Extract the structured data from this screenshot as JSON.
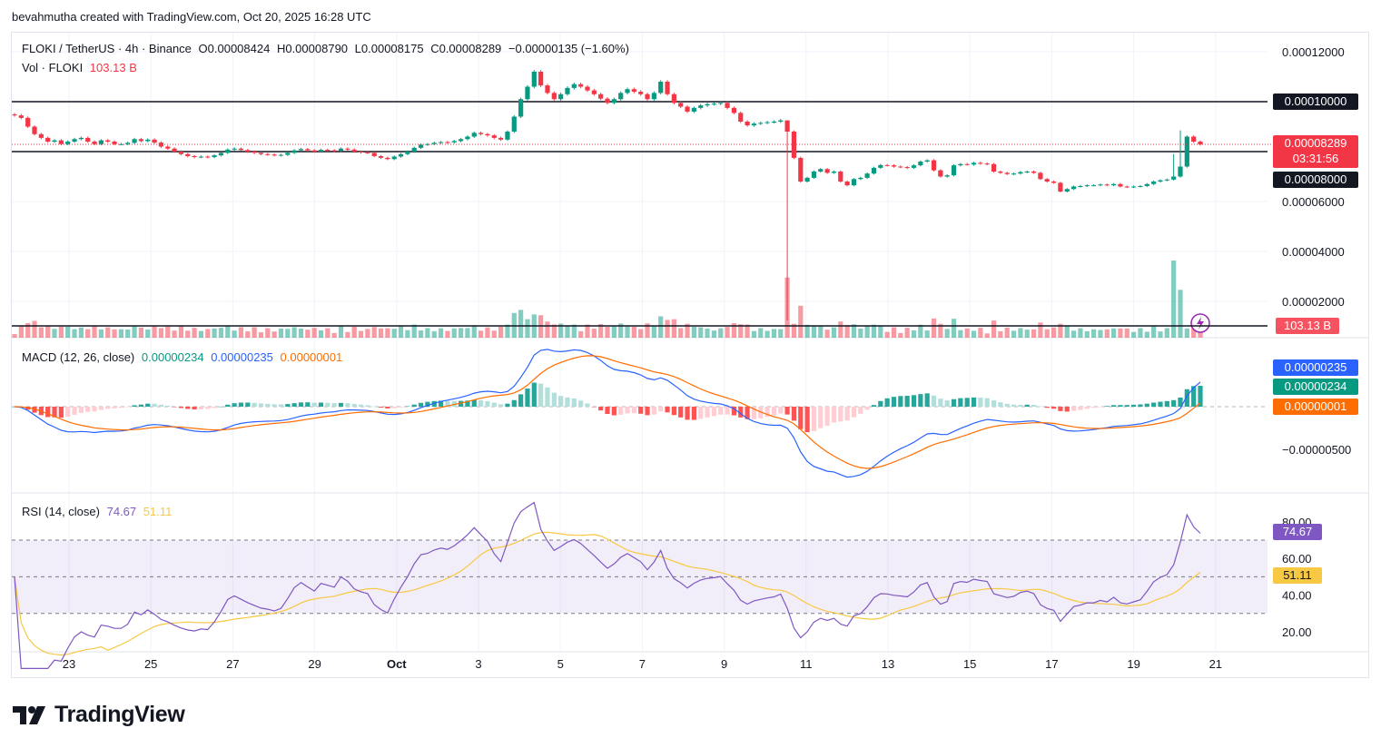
{
  "attribution": "bevahmutha created with TradingView.com, Oct 20, 2025 16:28 UTC",
  "brand": {
    "name": "TradingView"
  },
  "legend": {
    "symbol": "FLOKI / TetherUS · 4h · Binance",
    "open": "O0.00008424",
    "high": "H0.00008790",
    "low": "L0.00008175",
    "close": "C0.00008289",
    "change": "−0.00000135 (−1.60%)",
    "vol_label": "Vol · FLOKI",
    "vol_value": "103.13 B",
    "macd_label": "MACD (12, 26, close)",
    "macd_hist": "0.00000234",
    "macd_line": "0.00000235",
    "macd_signal": "0.00000001",
    "rsi_label": "RSI (14, close)",
    "rsi_value": "74.67",
    "rsi_ma": "51.11"
  },
  "tags": {
    "resistance": "0.00010000",
    "price": "0.00008289",
    "countdown": "03:31:56",
    "support": "0.00008000",
    "volume": "103.13 B",
    "macd_line": "0.00000235",
    "macd_hist": "0.00000234",
    "macd_signal": "0.00000001",
    "rsi": "74.67",
    "rsi_ma": "51.11"
  },
  "colors": {
    "up": "#089981",
    "down": "#f23645",
    "macd_line": "#2962ff",
    "signal": "#ff6d00",
    "rsi": "#7e57c2",
    "rsi_ma": "#f7c843",
    "hline": "#131722",
    "price_tag": "#f23645"
  },
  "chart_data": {
    "type": "candlestick",
    "price_axis": {
      "ticks": [
        0.00012,
        0.0001,
        8e-05,
        6e-05,
        4e-05,
        2e-05
      ],
      "tick_labels": [
        "0.00012000",
        "0.00008000",
        "0.00006000",
        "0.00004000",
        "0.00002000"
      ]
    },
    "x_axis": {
      "labels": [
        "23",
        "25",
        "27",
        "29",
        "Oct",
        "3",
        "5",
        "7",
        "9",
        "11",
        "13",
        "15",
        "17",
        "19",
        "21"
      ]
    },
    "horizontal_lines": [
      0.0001,
      8e-05
    ],
    "close": [
      9.45e-05,
      9.35e-05,
      9e-05,
      8.7e-05,
      8.55e-05,
      8.4e-05,
      8.45e-05,
      8.3e-05,
      8.4e-05,
      8.5e-05,
      8.55e-05,
      8.4e-05,
      8.3e-05,
      8.45e-05,
      8.4e-05,
      8.3e-05,
      8.3e-05,
      8.35e-05,
      8.5e-05,
      8.42e-05,
      8.48e-05,
      8.36e-05,
      8.2e-05,
      8.12e-05,
      8e-05,
      7.9e-05,
      7.82e-05,
      7.78e-05,
      7.8e-05,
      7.78e-05,
      7.85e-05,
      7.95e-05,
      8.08e-05,
      8.12e-05,
      8.06e-05,
      8e-05,
      7.95e-05,
      7.9e-05,
      7.88e-05,
      7.85e-05,
      7.87e-05,
      7.95e-05,
      8.05e-05,
      8.1e-05,
      8.05e-05,
      8e-05,
      8.07e-05,
      8.05e-05,
      8.03e-05,
      8.12e-05,
      8.08e-05,
      8e-05,
      7.97e-05,
      7.95e-05,
      7.82e-05,
      7.75e-05,
      7.7e-05,
      7.8e-05,
      7.9e-05,
      8e-05,
      8.15e-05,
      8.28e-05,
      8.3e-05,
      8.35e-05,
      8.38e-05,
      8.37e-05,
      8.42e-05,
      8.5e-05,
      8.6e-05,
      8.75e-05,
      8.7e-05,
      8.65e-05,
      8.55e-05,
      8.48e-05,
      8.8e-05,
      9.4e-05,
      0.000101,
      0.000106,
      0.000112,
      0.0001065,
      0.0001035,
      0.000101,
      0.000103,
      0.0001055,
      0.000107,
      0.000106,
      0.0001045,
      0.000103,
      0.0001012,
      9.95e-05,
      0.000101,
      0.0001035,
      0.000105,
      0.000104,
      0.000103,
      0.000101,
      0.0001035,
      0.000108,
      0.000103,
      9.95e-05,
      9.8e-05,
      9.6e-05,
      9.75e-05,
      9.85e-05,
      9.9e-05,
      9.92e-05,
      9.95e-05,
      9.75e-05,
      9.55e-05,
      9.2e-05,
      9.05e-05,
      9.12e-05,
      9.15e-05,
      9.18e-05,
      9.2e-05,
      9.25e-05,
      8.8e-05,
      7.75e-05,
      6.8e-05,
      6.95e-05,
      7.2e-05,
      7.3e-05,
      7.15e-05,
      7.2e-05,
      6.8e-05,
      6.65e-05,
      6.9e-05,
      6.95e-05,
      7.12e-05,
      7.35e-05,
      7.46e-05,
      7.45e-05,
      7.4e-05,
      7.38e-05,
      7.35e-05,
      7.45e-05,
      7.6e-05,
      7.65e-05,
      7.25e-05,
      7e-05,
      7.05e-05,
      7.45e-05,
      7.5e-05,
      7.48e-05,
      7.55e-05,
      7.52e-05,
      7.5e-05,
      7.2e-05,
      7.15e-05,
      7.1e-05,
      7.12e-05,
      7.18e-05,
      7.2e-05,
      7.15e-05,
      6.9e-05,
      6.8e-05,
      6.75e-05,
      6.4e-05,
      6.5e-05,
      6.6e-05,
      6.62e-05,
      6.65e-05,
      6.65e-05,
      6.68e-05,
      6.65e-05,
      6.7e-05,
      6.6e-05,
      6.58e-05,
      6.6e-05,
      6.62e-05,
      6.7e-05,
      6.8e-05,
      6.85e-05,
      6.88e-05,
      7e-05,
      7.4e-05,
      8.6e-05,
      8.4e-05,
      8.29e-05
    ],
    "volume_profile": {
      "spikes": {
        "75": 0.32,
        "76": 0.36,
        "77": 0.24,
        "116": 0.78,
        "117": 0.18,
        "174": 1.0,
        "175": 0.62,
        "176": 0.12
      }
    },
    "macd": {
      "zero_label": "−0.00000500",
      "line_min": -7.8e-06,
      "line_max": 5.5e-06
    },
    "rsi": {
      "ticks": [
        80,
        60,
        40,
        20
      ],
      "tick_labels": [
        "80.00",
        "60.00",
        "40.00",
        "20.00"
      ],
      "upper": 70,
      "middle": 50,
      "lower": 30
    }
  }
}
